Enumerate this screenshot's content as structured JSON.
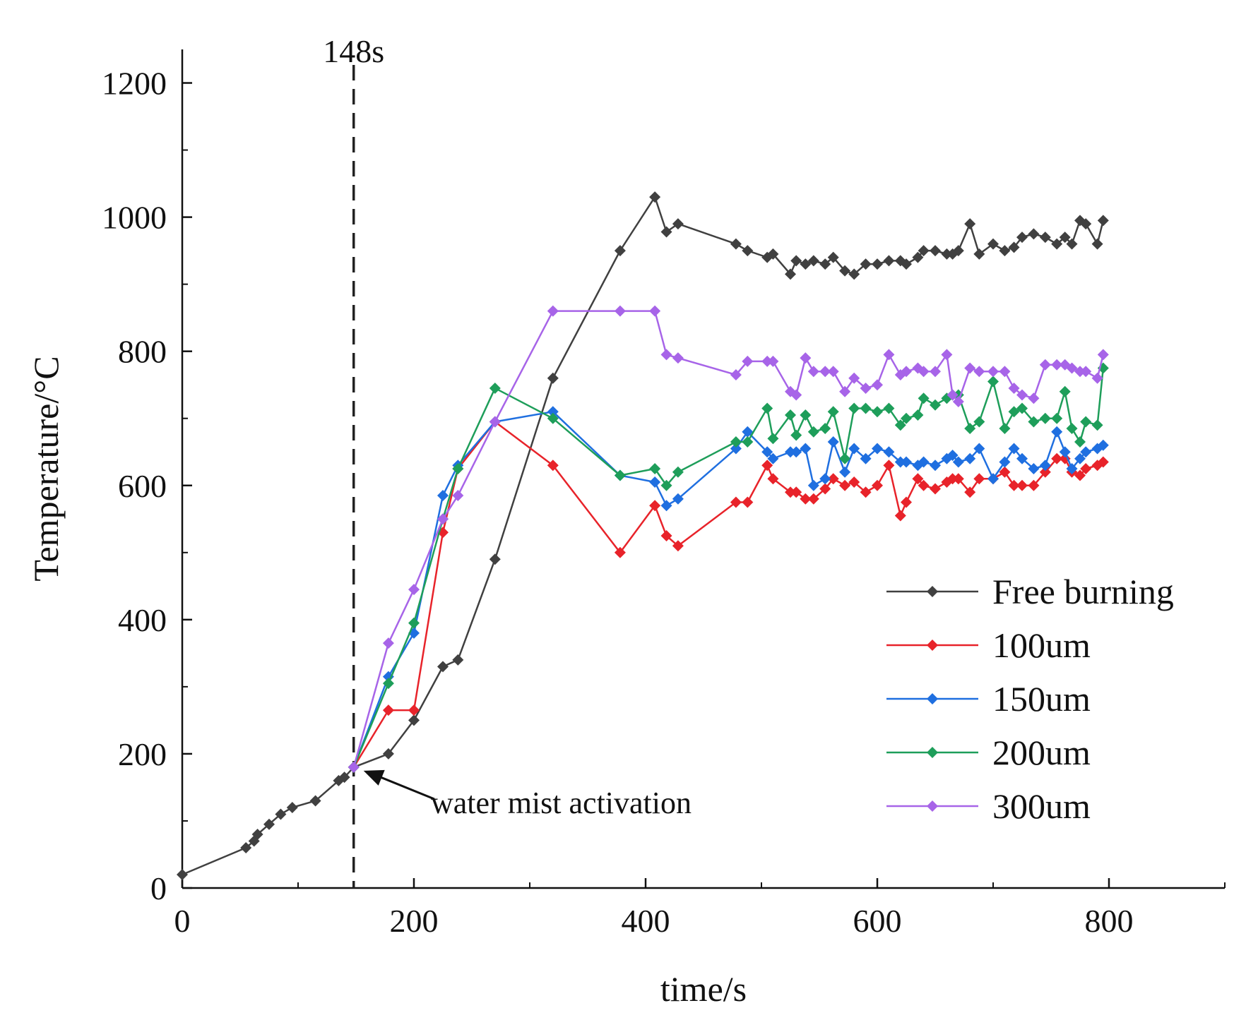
{
  "chart_data": {
    "type": "line",
    "xlabel": "time/s",
    "ylabel": "Temperature/°C",
    "xlim": [
      0,
      900
    ],
    "ylim": [
      0,
      1250
    ],
    "xticks": [
      0,
      200,
      400,
      600,
      800
    ],
    "yticks": [
      0,
      200,
      400,
      600,
      800,
      1000,
      1200
    ],
    "xtick_labels": [
      "0",
      "200",
      "400",
      "600",
      "800"
    ],
    "ytick_labels": [
      "0",
      "200",
      "400",
      "600",
      "800",
      "1000",
      "1200"
    ],
    "legend_position": "lower-right",
    "vline": {
      "x": 148,
      "label": "148s"
    },
    "annotation": {
      "text": "water mist activation",
      "x": 148,
      "y": 180
    },
    "series": [
      {
        "name": "Free burning",
        "color": "#404040",
        "x": [
          0,
          55,
          62,
          65,
          75,
          85,
          95,
          115,
          135,
          140,
          148,
          178,
          200,
          225,
          238,
          270,
          320,
          378,
          408,
          418,
          428,
          478,
          488,
          505,
          510,
          525,
          530,
          538,
          545,
          555,
          562,
          572,
          580,
          590,
          600,
          610,
          620,
          625,
          635,
          640,
          650,
          660,
          665,
          670,
          680,
          688,
          700,
          710,
          718,
          725,
          735,
          745,
          755,
          762,
          768,
          775,
          780,
          790,
          795
        ],
        "y": [
          20,
          60,
          70,
          80,
          95,
          110,
          120,
          130,
          160,
          165,
          180,
          200,
          250,
          330,
          340,
          490,
          760,
          950,
          1030,
          978,
          990,
          960,
          950,
          940,
          945,
          915,
          935,
          930,
          935,
          930,
          940,
          920,
          915,
          930,
          930,
          935,
          935,
          930,
          940,
          950,
          950,
          945,
          945,
          950,
          990,
          945,
          960,
          950,
          955,
          970,
          975,
          970,
          960,
          970,
          960,
          995,
          990,
          960,
          995
        ]
      },
      {
        "name": "100um",
        "color": "#e8232a",
        "x": [
          148,
          178,
          200,
          225,
          238,
          270,
          320,
          378,
          408,
          418,
          428,
          478,
          488,
          505,
          510,
          525,
          530,
          538,
          545,
          555,
          562,
          572,
          580,
          590,
          600,
          610,
          620,
          625,
          635,
          640,
          650,
          660,
          665,
          670,
          680,
          688,
          700,
          710,
          718,
          725,
          735,
          745,
          755,
          762,
          768,
          775,
          780,
          790,
          795
        ],
        "y": [
          180,
          265,
          265,
          530,
          625,
          695,
          630,
          500,
          570,
          525,
          510,
          575,
          575,
          630,
          610,
          590,
          590,
          580,
          580,
          595,
          610,
          600,
          605,
          590,
          600,
          630,
          555,
          575,
          610,
          600,
          595,
          605,
          610,
          610,
          590,
          610,
          610,
          620,
          600,
          600,
          600,
          620,
          640,
          640,
          620,
          615,
          625,
          630,
          635
        ]
      },
      {
        "name": "150um",
        "color": "#1f6fe0",
        "x": [
          148,
          178,
          200,
          225,
          238,
          270,
          320,
          378,
          408,
          418,
          428,
          478,
          488,
          505,
          510,
          525,
          530,
          538,
          545,
          555,
          562,
          572,
          580,
          590,
          600,
          610,
          620,
          625,
          635,
          640,
          650,
          660,
          665,
          670,
          680,
          688,
          700,
          710,
          718,
          725,
          735,
          745,
          755,
          762,
          768,
          775,
          780,
          790,
          795
        ],
        "y": [
          180,
          315,
          380,
          585,
          630,
          695,
          710,
          615,
          605,
          570,
          580,
          655,
          680,
          650,
          640,
          650,
          650,
          655,
          600,
          610,
          665,
          620,
          655,
          640,
          655,
          650,
          635,
          635,
          630,
          635,
          630,
          640,
          645,
          635,
          640,
          655,
          610,
          635,
          655,
          640,
          625,
          630,
          680,
          650,
          625,
          640,
          650,
          655,
          660
        ]
      },
      {
        "name": "200um",
        "color": "#1e9e5a",
        "x": [
          148,
          178,
          200,
          225,
          238,
          270,
          320,
          378,
          408,
          418,
          428,
          478,
          488,
          505,
          510,
          525,
          530,
          538,
          545,
          555,
          562,
          572,
          580,
          590,
          600,
          610,
          620,
          625,
          635,
          640,
          650,
          660,
          665,
          670,
          680,
          688,
          700,
          710,
          718,
          725,
          735,
          745,
          755,
          762,
          768,
          775,
          780,
          790,
          795
        ],
        "y": [
          180,
          305,
          395,
          550,
          625,
          745,
          700,
          615,
          625,
          600,
          620,
          665,
          665,
          715,
          670,
          705,
          675,
          705,
          680,
          685,
          710,
          640,
          715,
          715,
          710,
          715,
          690,
          700,
          705,
          730,
          720,
          730,
          735,
          735,
          685,
          695,
          755,
          685,
          710,
          715,
          695,
          700,
          700,
          740,
          685,
          665,
          695,
          690,
          775
        ]
      },
      {
        "name": "300um",
        "color": "#a764e8",
        "x": [
          148,
          178,
          200,
          225,
          238,
          270,
          320,
          378,
          408,
          418,
          428,
          478,
          488,
          505,
          510,
          525,
          530,
          538,
          545,
          555,
          562,
          572,
          580,
          590,
          600,
          610,
          620,
          625,
          635,
          640,
          650,
          660,
          665,
          670,
          680,
          688,
          700,
          710,
          718,
          725,
          735,
          745,
          755,
          762,
          768,
          775,
          780,
          790,
          795
        ],
        "y": [
          180,
          365,
          445,
          550,
          585,
          695,
          860,
          860,
          860,
          795,
          790,
          765,
          785,
          785,
          785,
          740,
          735,
          790,
          770,
          770,
          770,
          740,
          760,
          745,
          750,
          795,
          765,
          770,
          775,
          770,
          770,
          795,
          735,
          725,
          775,
          770,
          770,
          770,
          745,
          735,
          730,
          780,
          780,
          780,
          775,
          770,
          770,
          760,
          795
        ]
      }
    ]
  }
}
